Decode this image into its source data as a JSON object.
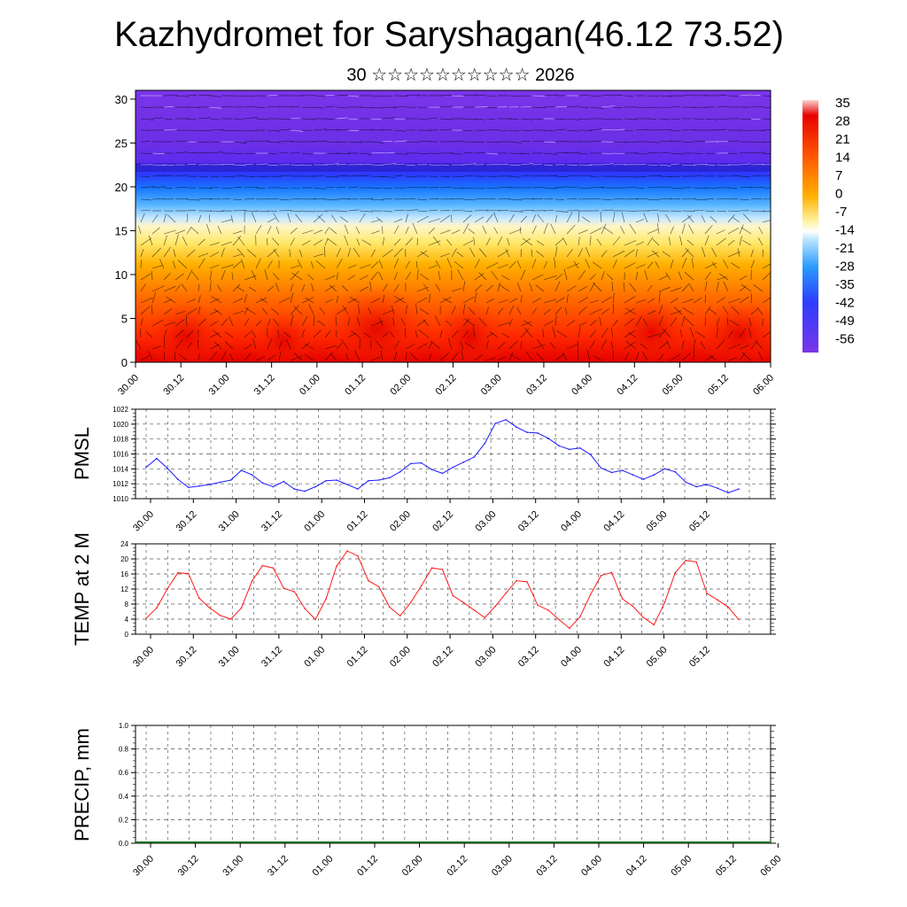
{
  "header": {
    "title": "Kazhydromet for Saryshagan(46.12 73.52)",
    "subtitle": "30 ☆☆☆☆☆☆☆☆☆☆ 2026"
  },
  "time_labels": [
    "30.00",
    "30.12",
    "31.00",
    "31.12",
    "01.00",
    "01.12",
    "02.00",
    "02.12",
    "03.00",
    "03.12",
    "04.00",
    "04.12",
    "05.00",
    "05.12",
    "06.00"
  ],
  "chart_data": [
    {
      "type": "heatmap",
      "name": "temperature-wind cross-section",
      "y_ticks": [
        0,
        5,
        10,
        15,
        20,
        25,
        30
      ],
      "ylim": [
        0,
        31
      ],
      "colorbar": {
        "labels": [
          "35",
          "28",
          "21",
          "14",
          "7",
          "0",
          "-7",
          "-14",
          "-21",
          "-28",
          "-35",
          "-42",
          "-49",
          "-56"
        ],
        "range": [
          -60,
          38
        ]
      }
    },
    {
      "type": "line",
      "ylabel": "PMSL",
      "ylim": [
        1010,
        1022
      ],
      "y_ticks": [
        "1010",
        "1012",
        "1014",
        "1016",
        "1018",
        "1020",
        "1022"
      ],
      "color": "#1a1aff",
      "values": [
        1014.2,
        1015.4,
        1014.1,
        1012.6,
        1011.5,
        1011.7,
        1011.9,
        1012.2,
        1012.5,
        1013.8,
        1013.2,
        1012.1,
        1011.6,
        1012.3,
        1011.3,
        1011.0,
        1011.6,
        1012.4,
        1012.5,
        1011.9,
        1011.3,
        1012.4,
        1012.5,
        1012.8,
        1013.6,
        1014.7,
        1014.8,
        1013.9,
        1013.4,
        1014.2,
        1014.9,
        1015.6,
        1017.4,
        1020.1,
        1020.6,
        1019.6,
        1018.9,
        1018.8,
        1018.1,
        1017.1,
        1016.6,
        1016.8,
        1015.9,
        1014.1,
        1013.5,
        1013.8,
        1013.2,
        1012.6,
        1013.2,
        1014.0,
        1013.6,
        1012.2,
        1011.6,
        1011.9,
        1011.4,
        1010.8,
        1011.3
      ]
    },
    {
      "type": "line",
      "ylabel": "TEMP at 2 M",
      "ylim": [
        0,
        24
      ],
      "y_ticks": [
        "0",
        "4",
        "8",
        "12",
        "16",
        "20",
        "24"
      ],
      "color": "#ff1a1a",
      "values": [
        4.2,
        7.0,
        12.0,
        16.3,
        16.1,
        9.6,
        7.0,
        5.0,
        4.0,
        7.0,
        14.1,
        18.2,
        17.6,
        12.2,
        11.3,
        6.8,
        3.9,
        9.4,
        18.1,
        22.1,
        20.8,
        14.2,
        12.6,
        7.2,
        4.9,
        8.4,
        12.8,
        17.6,
        17.2,
        10.2,
        8.4,
        6.4,
        4.4,
        7.4,
        10.9,
        14.2,
        13.9,
        7.7,
        6.4,
        3.9,
        1.6,
        4.6,
        10.6,
        15.6,
        16.4,
        9.4,
        7.4,
        4.4,
        2.5,
        8.4,
        16.3,
        19.6,
        19.2,
        10.8,
        9.1,
        7.2,
        3.9
      ]
    },
    {
      "type": "bar",
      "ylabel": "PRECIP, mm",
      "ylim": [
        0,
        1
      ],
      "y_ticks": [
        "0.0",
        "0.2",
        "0.4",
        "0.6",
        "0.8",
        "1.0"
      ],
      "values": []
    }
  ]
}
